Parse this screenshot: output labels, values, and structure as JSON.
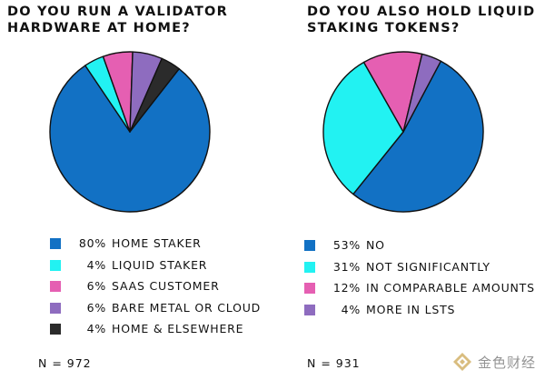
{
  "chart_data": [
    {
      "type": "pie",
      "title": "DO YOU RUN A VALIDATOR\nHARDWARE AT HOME?",
      "categories": [
        "HOME STAKER",
        "LIQUID STAKER",
        "SAAS CUSTOMER",
        "BARE METAL OR CLOUD",
        "HOME & ELSEWHERE"
      ],
      "values": [
        80,
        4,
        6,
        6,
        4
      ],
      "value_labels": [
        "80%",
        "4%",
        "6%",
        "6%",
        "4%"
      ],
      "colors": [
        "#1271c4",
        "#22f2f2",
        "#e55fb2",
        "#8e6cbf",
        "#2b2b2b"
      ],
      "sample_size": "N = 972",
      "legend_position": "bottom"
    },
    {
      "type": "pie",
      "title": "DO YOU ALSO HOLD LIQUID\nSTAKING TOKENS?",
      "categories": [
        "NO",
        "NOT SIGNIFICANTLY",
        "IN COMPARABLE AMOUNTS",
        "MORE IN LSTS"
      ],
      "values": [
        53,
        31,
        12,
        4
      ],
      "value_labels": [
        "53%",
        "31%",
        "12%",
        "4%"
      ],
      "colors": [
        "#1271c4",
        "#22f2f2",
        "#e55fb2",
        "#8e6cbf"
      ],
      "sample_size": "N = 931",
      "legend_position": "bottom"
    }
  ],
  "watermark": {
    "text": "金色财经",
    "icon": "gold-diamond-logo-icon"
  }
}
